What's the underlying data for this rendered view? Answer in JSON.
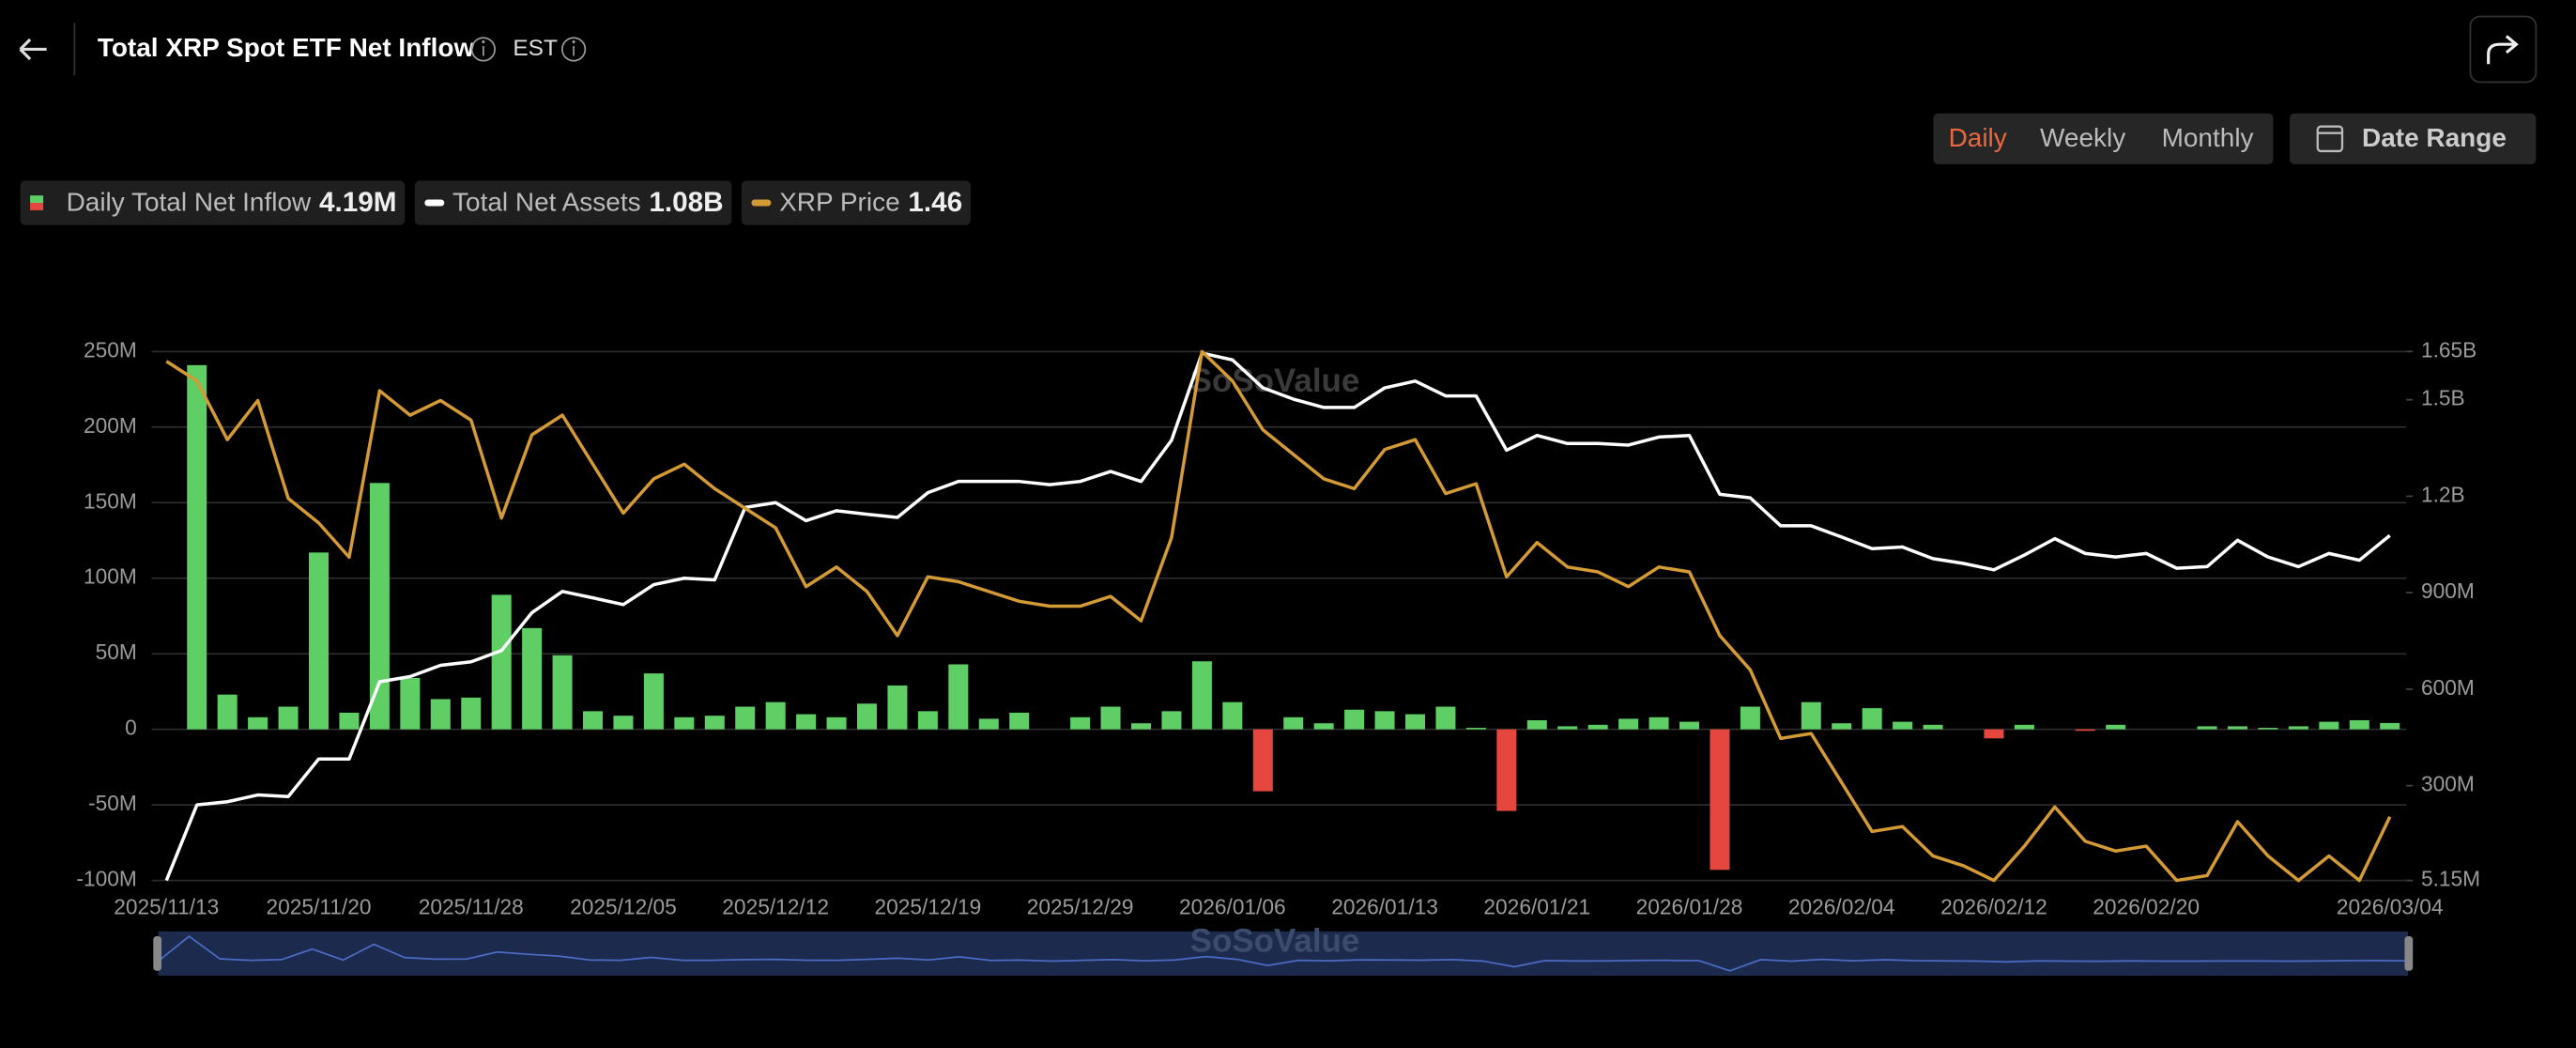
{
  "header": {
    "title": "Total XRP Spot ETF Net Inflow",
    "timezone": "EST"
  },
  "controls": {
    "periods": [
      "Daily",
      "Weekly",
      "Monthly"
    ],
    "active_period": 0,
    "date_range": "Date Range"
  },
  "watermark": "SoSoValue",
  "chart_data": {
    "type": "combo",
    "categories": [
      "2025/11/13",
      null,
      null,
      null,
      null,
      "2025/11/20",
      null,
      null,
      null,
      null,
      "2025/11/28",
      null,
      null,
      null,
      null,
      "2025/12/05",
      null,
      null,
      null,
      null,
      "2025/12/12",
      null,
      null,
      null,
      null,
      "2025/12/19",
      null,
      null,
      null,
      null,
      "2025/12/29",
      null,
      null,
      null,
      null,
      "2026/01/06",
      null,
      null,
      null,
      null,
      "2026/01/13",
      null,
      null,
      null,
      null,
      "2026/01/21",
      null,
      null,
      null,
      null,
      "2026/01/28",
      null,
      null,
      null,
      null,
      "2026/02/04",
      null,
      null,
      null,
      null,
      "2026/02/12",
      null,
      null,
      null,
      null,
      "2026/02/20",
      null,
      null,
      null,
      null,
      null,
      null,
      null,
      "2026/03/04"
    ],
    "series": [
      {
        "name": "Daily Total Net Inflow",
        "type": "bar",
        "axis": "y",
        "colors": {
          "positive": "#5fcf65",
          "negative": "#e5473f"
        },
        "latest_label": "4.19M",
        "values": [
          0,
          241000000,
          23000000,
          8000000,
          15000000,
          117000000,
          11000000,
          163000000,
          34000000,
          20000000,
          21000000,
          89000000,
          67000000,
          49000000,
          12000000,
          9000000,
          37000000,
          8000000,
          9000000,
          15000000,
          18000000,
          10000000,
          8000000,
          17000000,
          29000000,
          12000000,
          43000000,
          7000000,
          11000000,
          0,
          8000000,
          15000000,
          4000000,
          12000000,
          45000000,
          18000000,
          -41000000,
          8000000,
          4000000,
          13000000,
          12000000,
          10000000,
          15000000,
          1000000,
          -54000000,
          6000000,
          2000000,
          3000000,
          7000000,
          8000000,
          5000000,
          -93000000,
          15000000,
          0,
          18000000,
          4000000,
          14000000,
          5000000,
          3000000,
          0,
          -6000000,
          3000000,
          0,
          -1000000,
          3000000,
          0,
          0,
          2000000,
          2000000,
          1000000,
          2000000,
          5000000,
          6000000,
          4190000
        ]
      },
      {
        "name": "Total Net Assets",
        "type": "line",
        "axis": "y2",
        "color": "#ffffff",
        "latest_label": "1.08B",
        "values": [
          5150000,
          240000000,
          250000000,
          271000000,
          266000000,
          383000000,
          383000000,
          623000000,
          639000000,
          674000000,
          685000000,
          720000000,
          838000000,
          904000000,
          884000000,
          863000000,
          925000000,
          945000000,
          940000000,
          1165000000,
          1180000000,
          1124000000,
          1155000000,
          1144000000,
          1134000000,
          1211000000,
          1246000000,
          1246000000,
          1246000000,
          1236000000,
          1246000000,
          1277000000,
          1246000000,
          1374000000,
          1645000000,
          1624000000,
          1537000000,
          1502000000,
          1476000000,
          1476000000,
          1537000000,
          1558000000,
          1512000000,
          1512000000,
          1343000000,
          1389000000,
          1364000000,
          1364000000,
          1359000000,
          1384000000,
          1389000000,
          1206000000,
          1195000000,
          1108000000,
          1108000000,
          1073000000,
          1037000000,
          1042000000,
          1006000000,
          991000000,
          971000000,
          1017000000,
          1068000000,
          1022000000,
          1011000000,
          1022000000,
          976000000,
          981000000,
          1063000000,
          1011000000,
          981000000,
          1022000000,
          1001000000,
          1078000000
        ]
      },
      {
        "name": "XRP Price",
        "type": "line",
        "axis": "y3",
        "color": "#d39a35",
        "latest_label": "1.46",
        "values": [
          2.39,
          2.35,
          2.23,
          2.31,
          2.11,
          2.06,
          1.99,
          2.33,
          2.28,
          2.31,
          2.27,
          2.07,
          2.24,
          2.28,
          2.18,
          2.08,
          2.15,
          2.18,
          2.13,
          2.09,
          2.05,
          1.93,
          1.97,
          1.92,
          1.83,
          1.95,
          1.94,
          1.92,
          1.9,
          1.89,
          1.89,
          1.91,
          1.86,
          2.03,
          2.41,
          2.35,
          2.25,
          2.2,
          2.15,
          2.13,
          2.21,
          2.23,
          2.12,
          2.14,
          1.95,
          2.02,
          1.97,
          1.96,
          1.93,
          1.97,
          1.96,
          1.83,
          1.76,
          1.62,
          1.63,
          1.53,
          1.43,
          1.44,
          1.38,
          1.36,
          1.33,
          1.4,
          1.48,
          1.41,
          1.39,
          1.4,
          1.33,
          1.34,
          1.45,
          1.38,
          1.33,
          1.38,
          1.33,
          1.46
        ]
      }
    ],
    "ylim": [
      -100000000,
      250000000
    ],
    "yticks": [
      {
        "value": -100000000,
        "label": "-100M"
      },
      {
        "value": -50000000,
        "label": "-50M"
      },
      0,
      {
        "value": 50000000,
        "label": "50M"
      },
      {
        "value": 100000000,
        "label": "100M"
      },
      {
        "value": 150000000,
        "label": "150M"
      },
      {
        "value": 200000000,
        "label": "200M"
      },
      {
        "value": 250000000,
        "label": "250M"
      }
    ],
    "y2lim": [
      5150000,
      1650000000
    ],
    "y2ticks": [
      {
        "value": 5150000,
        "label": "5.15M"
      },
      {
        "value": 300000000,
        "label": "300M"
      },
      {
        "value": 600000000,
        "label": "600M"
      },
      {
        "value": 900000000,
        "label": "900M"
      },
      {
        "value": 1200000000,
        "label": "1.2B"
      },
      {
        "value": 1500000000,
        "label": "1.5B"
      },
      {
        "value": 1650000000,
        "label": "1.65B"
      }
    ],
    "y3lim": [
      1.33,
      2.41
    ],
    "grid": true
  }
}
